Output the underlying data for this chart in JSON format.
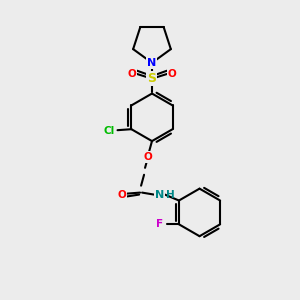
{
  "background_color": "#ececec",
  "bond_color": "#000000",
  "atom_colors": {
    "N": "#0000ff",
    "O": "#ff0000",
    "S": "#cccc00",
    "Cl": "#00bb00",
    "F": "#cc00cc",
    "NH": "#008888",
    "C": "#000000"
  },
  "figsize": [
    3.0,
    3.0
  ],
  "dpi": 100
}
